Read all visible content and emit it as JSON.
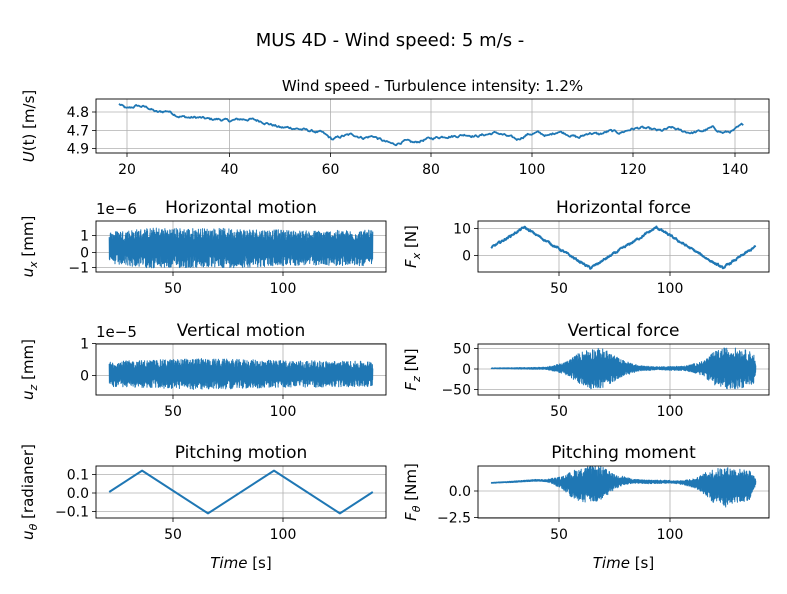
{
  "figure": {
    "title": "MUS 4D - Wind speed: 5 m/s -"
  },
  "chart_data": [
    {
      "id": "wind",
      "type": "line",
      "title": "Wind speed - Turbulence intensity: 1.2%",
      "ylabel": "U(t) [m/s]",
      "xlabel": "",
      "offset_text": "",
      "xlim": [
        15,
        146
      ],
      "ylim": [
        4.67,
        4.99
      ],
      "xticks": [
        "20",
        "40",
        "60",
        "80",
        "100",
        "120",
        "140"
      ],
      "yticks": [
        "4.7",
        "4.8",
        "4.9"
      ],
      "grid": true,
      "series": [
        {
          "color": "#1f77b4",
          "x": [
            19.5,
            21,
            23,
            25,
            27,
            29,
            31,
            33,
            35,
            37,
            39,
            41,
            43,
            45,
            47,
            49,
            51,
            53,
            55,
            57,
            59,
            61,
            63,
            65,
            67,
            69,
            71,
            73,
            75,
            77,
            79,
            81,
            83,
            85,
            87,
            89,
            91,
            93,
            95,
            97,
            99,
            101,
            103,
            105,
            107,
            109,
            111,
            113,
            115,
            117,
            119,
            121,
            123,
            125,
            127,
            129,
            131,
            133,
            135,
            137,
            139,
            141
          ],
          "y": [
            4.96,
            4.93,
            4.95,
            4.94,
            4.91,
            4.92,
            4.89,
            4.88,
            4.88,
            4.87,
            4.87,
            4.86,
            4.87,
            4.87,
            4.86,
            4.84,
            4.82,
            4.82,
            4.81,
            4.8,
            4.79,
            4.75,
            4.77,
            4.78,
            4.76,
            4.77,
            4.74,
            4.72,
            4.74,
            4.73,
            4.75,
            4.76,
            4.77,
            4.77,
            4.78,
            4.77,
            4.78,
            4.79,
            4.77,
            4.75,
            4.78,
            4.79,
            4.77,
            4.8,
            4.78,
            4.76,
            4.79,
            4.78,
            4.8,
            4.79,
            4.81,
            4.82,
            4.81,
            4.8,
            4.82,
            4.8,
            4.79,
            4.8,
            4.82,
            4.79,
            4.8,
            4.84
          ]
        }
      ],
      "noise": 0.012
    },
    {
      "id": "ux",
      "type": "line",
      "title": "Horizontal motion",
      "ylabel": "u_x [mm]",
      "xlabel": "",
      "offset_text": "1e−6",
      "xlim": [
        14,
        146
      ],
      "ylim": [
        -1.6,
        1.8
      ],
      "xticks": [
        "50",
        "100"
      ],
      "yticks": [
        "1",
        "0",
        "−1"
      ],
      "grid": true,
      "series": [
        {
          "color": "#1f77b4",
          "x": [
            20,
            140
          ],
          "y": [
            0,
            0
          ]
        }
      ],
      "amplitude": [
        {
          "x": 20,
          "a": 1.1
        },
        {
          "x": 40,
          "a": 1.35
        },
        {
          "x": 80,
          "a": 1.3
        },
        {
          "x": 110,
          "a": 1.15
        },
        {
          "x": 140,
          "a": 1.2
        }
      ],
      "oscillating": true
    },
    {
      "id": "fx",
      "type": "line",
      "title": "Horizontal force",
      "ylabel": "F_x [N]",
      "xlabel": "",
      "offset_text": "",
      "xlim": [
        14,
        146
      ],
      "ylim": [
        -7,
        13
      ],
      "xticks": [
        "50",
        "100"
      ],
      "yticks": [
        "10",
        "0"
      ],
      "grid": true,
      "series": [
        {
          "color": "#1f77b4",
          "x": [
            20,
            35,
            65,
            95,
            125,
            140
          ],
          "y": [
            2.5,
            10.5,
            -5.5,
            10.5,
            -5.5,
            3
          ]
        }
      ],
      "noise": 0.6
    },
    {
      "id": "uz",
      "type": "line",
      "title": "Vertical motion",
      "ylabel": "u_z [mm]",
      "xlabel": "",
      "offset_text": "1e−5",
      "xlim": [
        14,
        146
      ],
      "ylim": [
        -0.7,
        1.0
      ],
      "xticks": [
        "50",
        "100"
      ],
      "yticks": [
        "1",
        "0"
      ],
      "grid": true,
      "series": [
        {
          "color": "#1f77b4",
          "x": [
            20,
            140
          ],
          "y": [
            0,
            0
          ]
        }
      ],
      "amplitude": [
        {
          "x": 20,
          "a": 0.42
        },
        {
          "x": 60,
          "a": 0.52
        },
        {
          "x": 100,
          "a": 0.45
        },
        {
          "x": 140,
          "a": 0.42
        }
      ],
      "oscillating": true
    },
    {
      "id": "fz",
      "type": "line",
      "title": "Vertical force",
      "ylabel": "F_z [N]",
      "xlabel": "",
      "offset_text": "",
      "xlim": [
        14,
        146
      ],
      "ylim": [
        -68,
        62
      ],
      "xticks": [
        "50",
        "100"
      ],
      "yticks": [
        "50",
        "0",
        "−50"
      ],
      "grid": true,
      "series": [
        {
          "color": "#1f77b4",
          "x": [
            20,
            140
          ],
          "y": [
            0,
            0
          ]
        }
      ],
      "amplitude": [
        {
          "x": 20,
          "a": 1
        },
        {
          "x": 45,
          "a": 3
        },
        {
          "x": 53,
          "a": 14
        },
        {
          "x": 60,
          "a": 40
        },
        {
          "x": 65,
          "a": 52
        },
        {
          "x": 71,
          "a": 50
        },
        {
          "x": 79,
          "a": 22
        },
        {
          "x": 87,
          "a": 7
        },
        {
          "x": 95,
          "a": 4
        },
        {
          "x": 108,
          "a": 6
        },
        {
          "x": 116,
          "a": 18
        },
        {
          "x": 121,
          "a": 42
        },
        {
          "x": 126,
          "a": 53
        },
        {
          "x": 133,
          "a": 52
        },
        {
          "x": 139,
          "a": 40
        },
        {
          "x": 140,
          "a": 10
        }
      ],
      "oscillating": true
    },
    {
      "id": "utheta",
      "type": "line",
      "title": "Pitching motion",
      "ylabel": "u_θ [radianer]",
      "xlabel": "Time [s]",
      "offset_text": "",
      "xlim": [
        14,
        146
      ],
      "ylim": [
        -0.17,
        0.17
      ],
      "xticks": [
        "50",
        "100"
      ],
      "yticks": [
        "0.1",
        "0.0",
        "−0.1"
      ],
      "grid": true,
      "series": [
        {
          "color": "#1f77b4",
          "x": [
            20,
            35,
            65,
            95,
            125,
            140
          ],
          "y": [
            0.0,
            0.14,
            -0.14,
            0.14,
            -0.14,
            0.0
          ]
        }
      ]
    },
    {
      "id": "ftheta",
      "type": "line",
      "title": "Pitching moment",
      "ylabel": "F_θ [Nm]",
      "xlabel": "Time [s]",
      "offset_text": "",
      "xlim": [
        14,
        146
      ],
      "ylim": [
        -3.1,
        2.0
      ],
      "xticks": [
        "50",
        "100"
      ],
      "yticks": [
        "0.0",
        "−2.5"
      ],
      "grid": true,
      "series": [
        {
          "color": "#1f77b4",
          "x": [
            20,
            30,
            40,
            47,
            53,
            60,
            67,
            73,
            80,
            90,
            100,
            110,
            116,
            122,
            127,
            132,
            137,
            140
          ],
          "y": [
            0.35,
            0.45,
            0.6,
            0.55,
            0.3,
            0.1,
            0.2,
            0.35,
            0.55,
            0.45,
            0.45,
            0.35,
            0.25,
            0.0,
            -0.05,
            0.05,
            0.1,
            0.4
          ]
        }
      ],
      "amplitude": [
        {
          "x": 20,
          "a": 0.05
        },
        {
          "x": 45,
          "a": 0.1
        },
        {
          "x": 52,
          "a": 0.6
        },
        {
          "x": 58,
          "a": 1.5
        },
        {
          "x": 64,
          "a": 1.8
        },
        {
          "x": 70,
          "a": 1.7
        },
        {
          "x": 76,
          "a": 0.7
        },
        {
          "x": 84,
          "a": 0.2
        },
        {
          "x": 105,
          "a": 0.15
        },
        {
          "x": 113,
          "a": 0.5
        },
        {
          "x": 120,
          "a": 1.6
        },
        {
          "x": 126,
          "a": 2.0
        },
        {
          "x": 132,
          "a": 1.7
        },
        {
          "x": 138,
          "a": 1.4
        },
        {
          "x": 140,
          "a": 0.3
        }
      ],
      "oscillating": true
    }
  ]
}
